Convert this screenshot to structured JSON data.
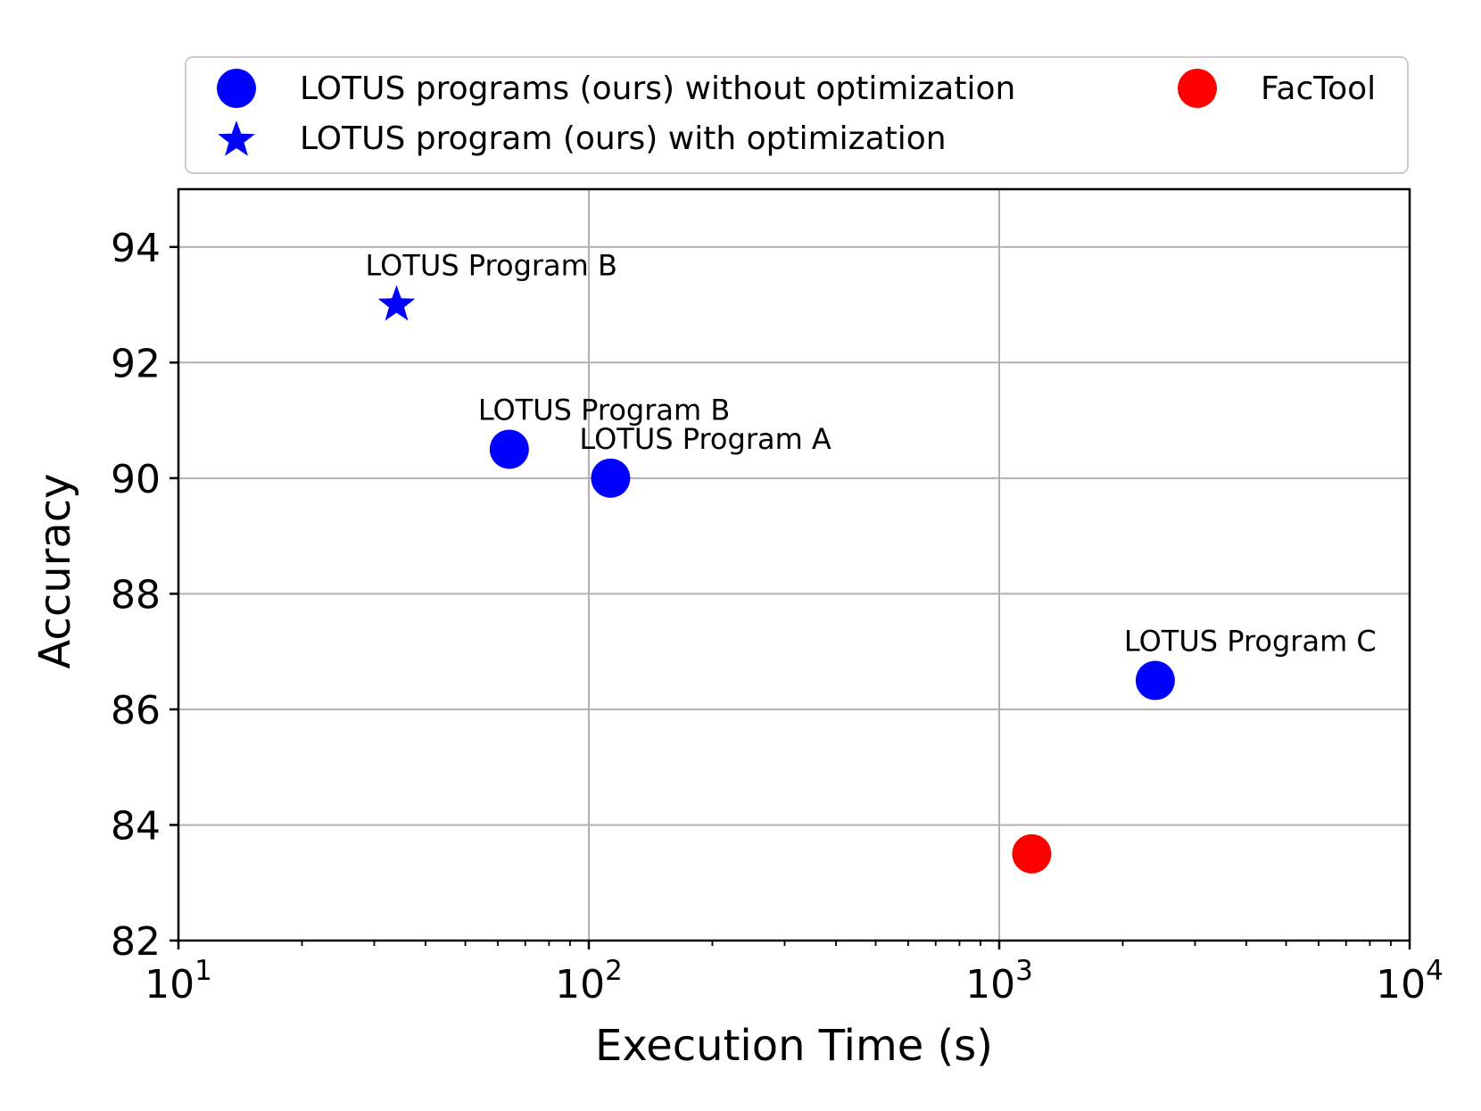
{
  "chart_data": {
    "type": "scatter",
    "xscale": "log",
    "xlabel": "Execution Time (s)",
    "ylabel": "Accuracy",
    "xlim": [
      10,
      10000
    ],
    "ylim": [
      82,
      95
    ],
    "grid": true,
    "x_ticks": [
      {
        "value": 10,
        "base": "10",
        "exp": "1"
      },
      {
        "value": 100,
        "base": "10",
        "exp": "2"
      },
      {
        "value": 1000,
        "base": "10",
        "exp": "3"
      },
      {
        "value": 10000,
        "base": "10",
        "exp": "4"
      }
    ],
    "y_ticks": [
      82,
      84,
      86,
      88,
      90,
      92,
      94
    ],
    "legend": {
      "placement": "top",
      "entries": [
        {
          "label": "LOTUS programs (ours) without optimization",
          "marker": "circle",
          "color": "#0000ff"
        },
        {
          "label": "LOTUS program (ours) with optimization",
          "marker": "star",
          "color": "#0000ff"
        },
        {
          "label": "FacTool",
          "marker": "circle",
          "color": "#ff0000"
        }
      ]
    },
    "series": [
      {
        "name": "LOTUS programs (ours) without optimization",
        "marker": "circle",
        "color": "#0000ff",
        "points": [
          {
            "x": 64,
            "y": 90.5,
            "label": "LOTUS Program B"
          },
          {
            "x": 113,
            "y": 90.0,
            "label": "LOTUS Program A"
          },
          {
            "x": 2400,
            "y": 86.5,
            "label": "LOTUS Program C"
          }
        ]
      },
      {
        "name": "LOTUS program (ours) with optimization",
        "marker": "star",
        "color": "#0000ff",
        "points": [
          {
            "x": 34,
            "y": 93.0,
            "label": "LOTUS Program B"
          }
        ]
      },
      {
        "name": "FacTool",
        "marker": "circle",
        "color": "#ff0000",
        "points": [
          {
            "x": 1200,
            "y": 83.5,
            "label": ""
          }
        ]
      }
    ]
  }
}
